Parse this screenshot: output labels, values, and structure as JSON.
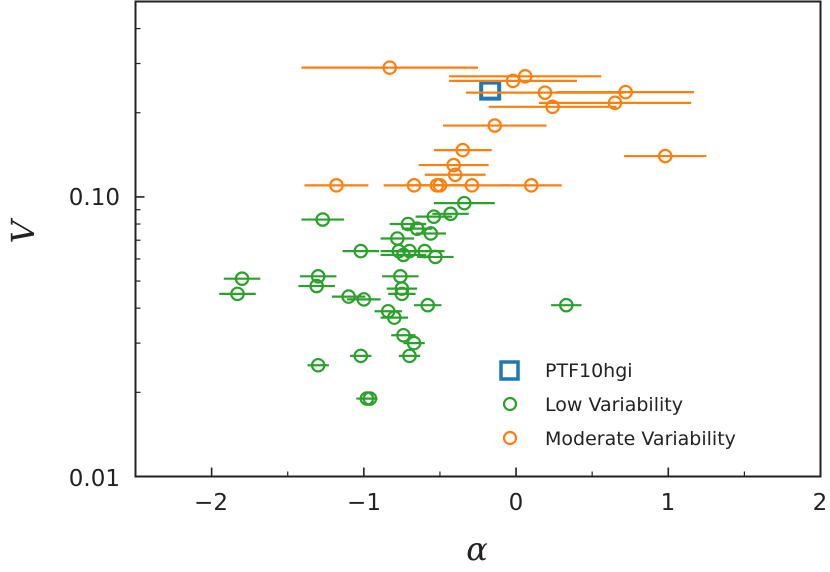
{
  "chart_data": {
    "type": "scatter",
    "title": "",
    "xlabel": "α",
    "ylabel": "V",
    "xlim": [
      -2.5,
      2
    ],
    "ylim": [
      0.01,
      0.5
    ],
    "yscale": "log",
    "x_ticks": [
      -2,
      -1,
      0,
      1,
      2
    ],
    "x_tick_labels": [
      "−2",
      "−1",
      "0",
      "1",
      "2"
    ],
    "y_major_ticks": [
      0.01,
      0.1
    ],
    "y_tick_labels": [
      "0.01",
      "0.10"
    ],
    "legend_position": "bottom-right",
    "series": [
      {
        "name": "PTF10hgi",
        "marker": "square",
        "color": "#1f77b4",
        "points": [
          {
            "x": -0.17,
            "y": 0.24
          }
        ]
      },
      {
        "name": "Low Variability",
        "marker": "circle",
        "color": "#2ca02c",
        "points": [
          {
            "x": -1.8,
            "y": 0.051,
            "xerr": 0.12
          },
          {
            "x": -1.83,
            "y": 0.045,
            "xerr": 0.12
          },
          {
            "x": -1.27,
            "y": 0.083,
            "xerr": 0.14
          },
          {
            "x": -1.3,
            "y": 0.052,
            "xerr": 0.12
          },
          {
            "x": -1.31,
            "y": 0.048,
            "xerr": 0.12
          },
          {
            "x": -1.1,
            "y": 0.044,
            "xerr": 0.11
          },
          {
            "x": -1.02,
            "y": 0.064,
            "xerr": 0.12
          },
          {
            "x": -1.0,
            "y": 0.043,
            "xerr": 0.11
          },
          {
            "x": -1.02,
            "y": 0.027,
            "xerr": 0.07
          },
          {
            "x": -0.98,
            "y": 0.019,
            "xerr": 0.07
          },
          {
            "x": -0.96,
            "y": 0.019,
            "xerr": 0.05
          },
          {
            "x": -1.3,
            "y": 0.025,
            "xerr": 0.07
          },
          {
            "x": -0.84,
            "y": 0.039,
            "xerr": 0.09
          },
          {
            "x": -0.8,
            "y": 0.037,
            "xerr": 0.09
          },
          {
            "x": -0.78,
            "y": 0.071,
            "xerr": 0.11
          },
          {
            "x": -0.77,
            "y": 0.064,
            "xerr": 0.12
          },
          {
            "x": -0.76,
            "y": 0.052,
            "xerr": 0.12
          },
          {
            "x": -0.75,
            "y": 0.047,
            "xerr": 0.1
          },
          {
            "x": -0.75,
            "y": 0.045,
            "xerr": 0.09
          },
          {
            "x": -0.74,
            "y": 0.062,
            "xerr": 0.15
          },
          {
            "x": -0.74,
            "y": 0.032,
            "xerr": 0.08
          },
          {
            "x": -0.71,
            "y": 0.08,
            "xerr": 0.12
          },
          {
            "x": -0.7,
            "y": 0.064,
            "xerr": 0.12
          },
          {
            "x": -0.7,
            "y": 0.027,
            "xerr": 0.07
          },
          {
            "x": -0.67,
            "y": 0.03,
            "xerr": 0.07
          },
          {
            "x": -0.65,
            "y": 0.077,
            "xerr": 0.1
          },
          {
            "x": -0.6,
            "y": 0.064,
            "xerr": 0.13
          },
          {
            "x": -0.58,
            "y": 0.041,
            "xerr": 0.09
          },
          {
            "x": -0.56,
            "y": 0.074,
            "xerr": 0.1
          },
          {
            "x": -0.54,
            "y": 0.085,
            "xerr": 0.12
          },
          {
            "x": -0.53,
            "y": 0.061,
            "xerr": 0.12
          },
          {
            "x": -0.43,
            "y": 0.087,
            "xerr": 0.12
          },
          {
            "x": -0.34,
            "y": 0.095,
            "xerr": 0.2
          },
          {
            "x": 0.33,
            "y": 0.041,
            "xerr": 0.1
          }
        ]
      },
      {
        "name": "Moderate Variability",
        "marker": "circle",
        "color": "#ff7f0e",
        "points": [
          {
            "x": -0.83,
            "y": 0.29,
            "xerr": 0.58
          },
          {
            "x": -1.18,
            "y": 0.11,
            "xerr": 0.21
          },
          {
            "x": -0.67,
            "y": 0.11,
            "xerr": 0.2
          },
          {
            "x": -0.52,
            "y": 0.11,
            "xerr": 0.19
          },
          {
            "x": -0.5,
            "y": 0.11,
            "xerr": 0.16
          },
          {
            "x": -0.29,
            "y": 0.11,
            "xerr": 0.25
          },
          {
            "x": 0.1,
            "y": 0.11,
            "xerr": 0.2
          },
          {
            "x": -0.41,
            "y": 0.13,
            "xerr": 0.23
          },
          {
            "x": -0.4,
            "y": 0.12,
            "xerr": 0.2
          },
          {
            "x": -0.35,
            "y": 0.147,
            "xerr": 0.19
          },
          {
            "x": -0.14,
            "y": 0.18,
            "xerr": 0.34
          },
          {
            "x": -0.02,
            "y": 0.26,
            "xerr": 0.42
          },
          {
            "x": 0.06,
            "y": 0.27,
            "xerr": 0.5
          },
          {
            "x": 0.19,
            "y": 0.236,
            "xerr": 0.52
          },
          {
            "x": 0.24,
            "y": 0.21,
            "xerr": 0.42
          },
          {
            "x": 0.65,
            "y": 0.217,
            "xerr": 0.5
          },
          {
            "x": 0.72,
            "y": 0.237,
            "xerr": 0.45
          },
          {
            "x": 0.98,
            "y": 0.14,
            "xerr": 0.27
          }
        ]
      }
    ]
  }
}
